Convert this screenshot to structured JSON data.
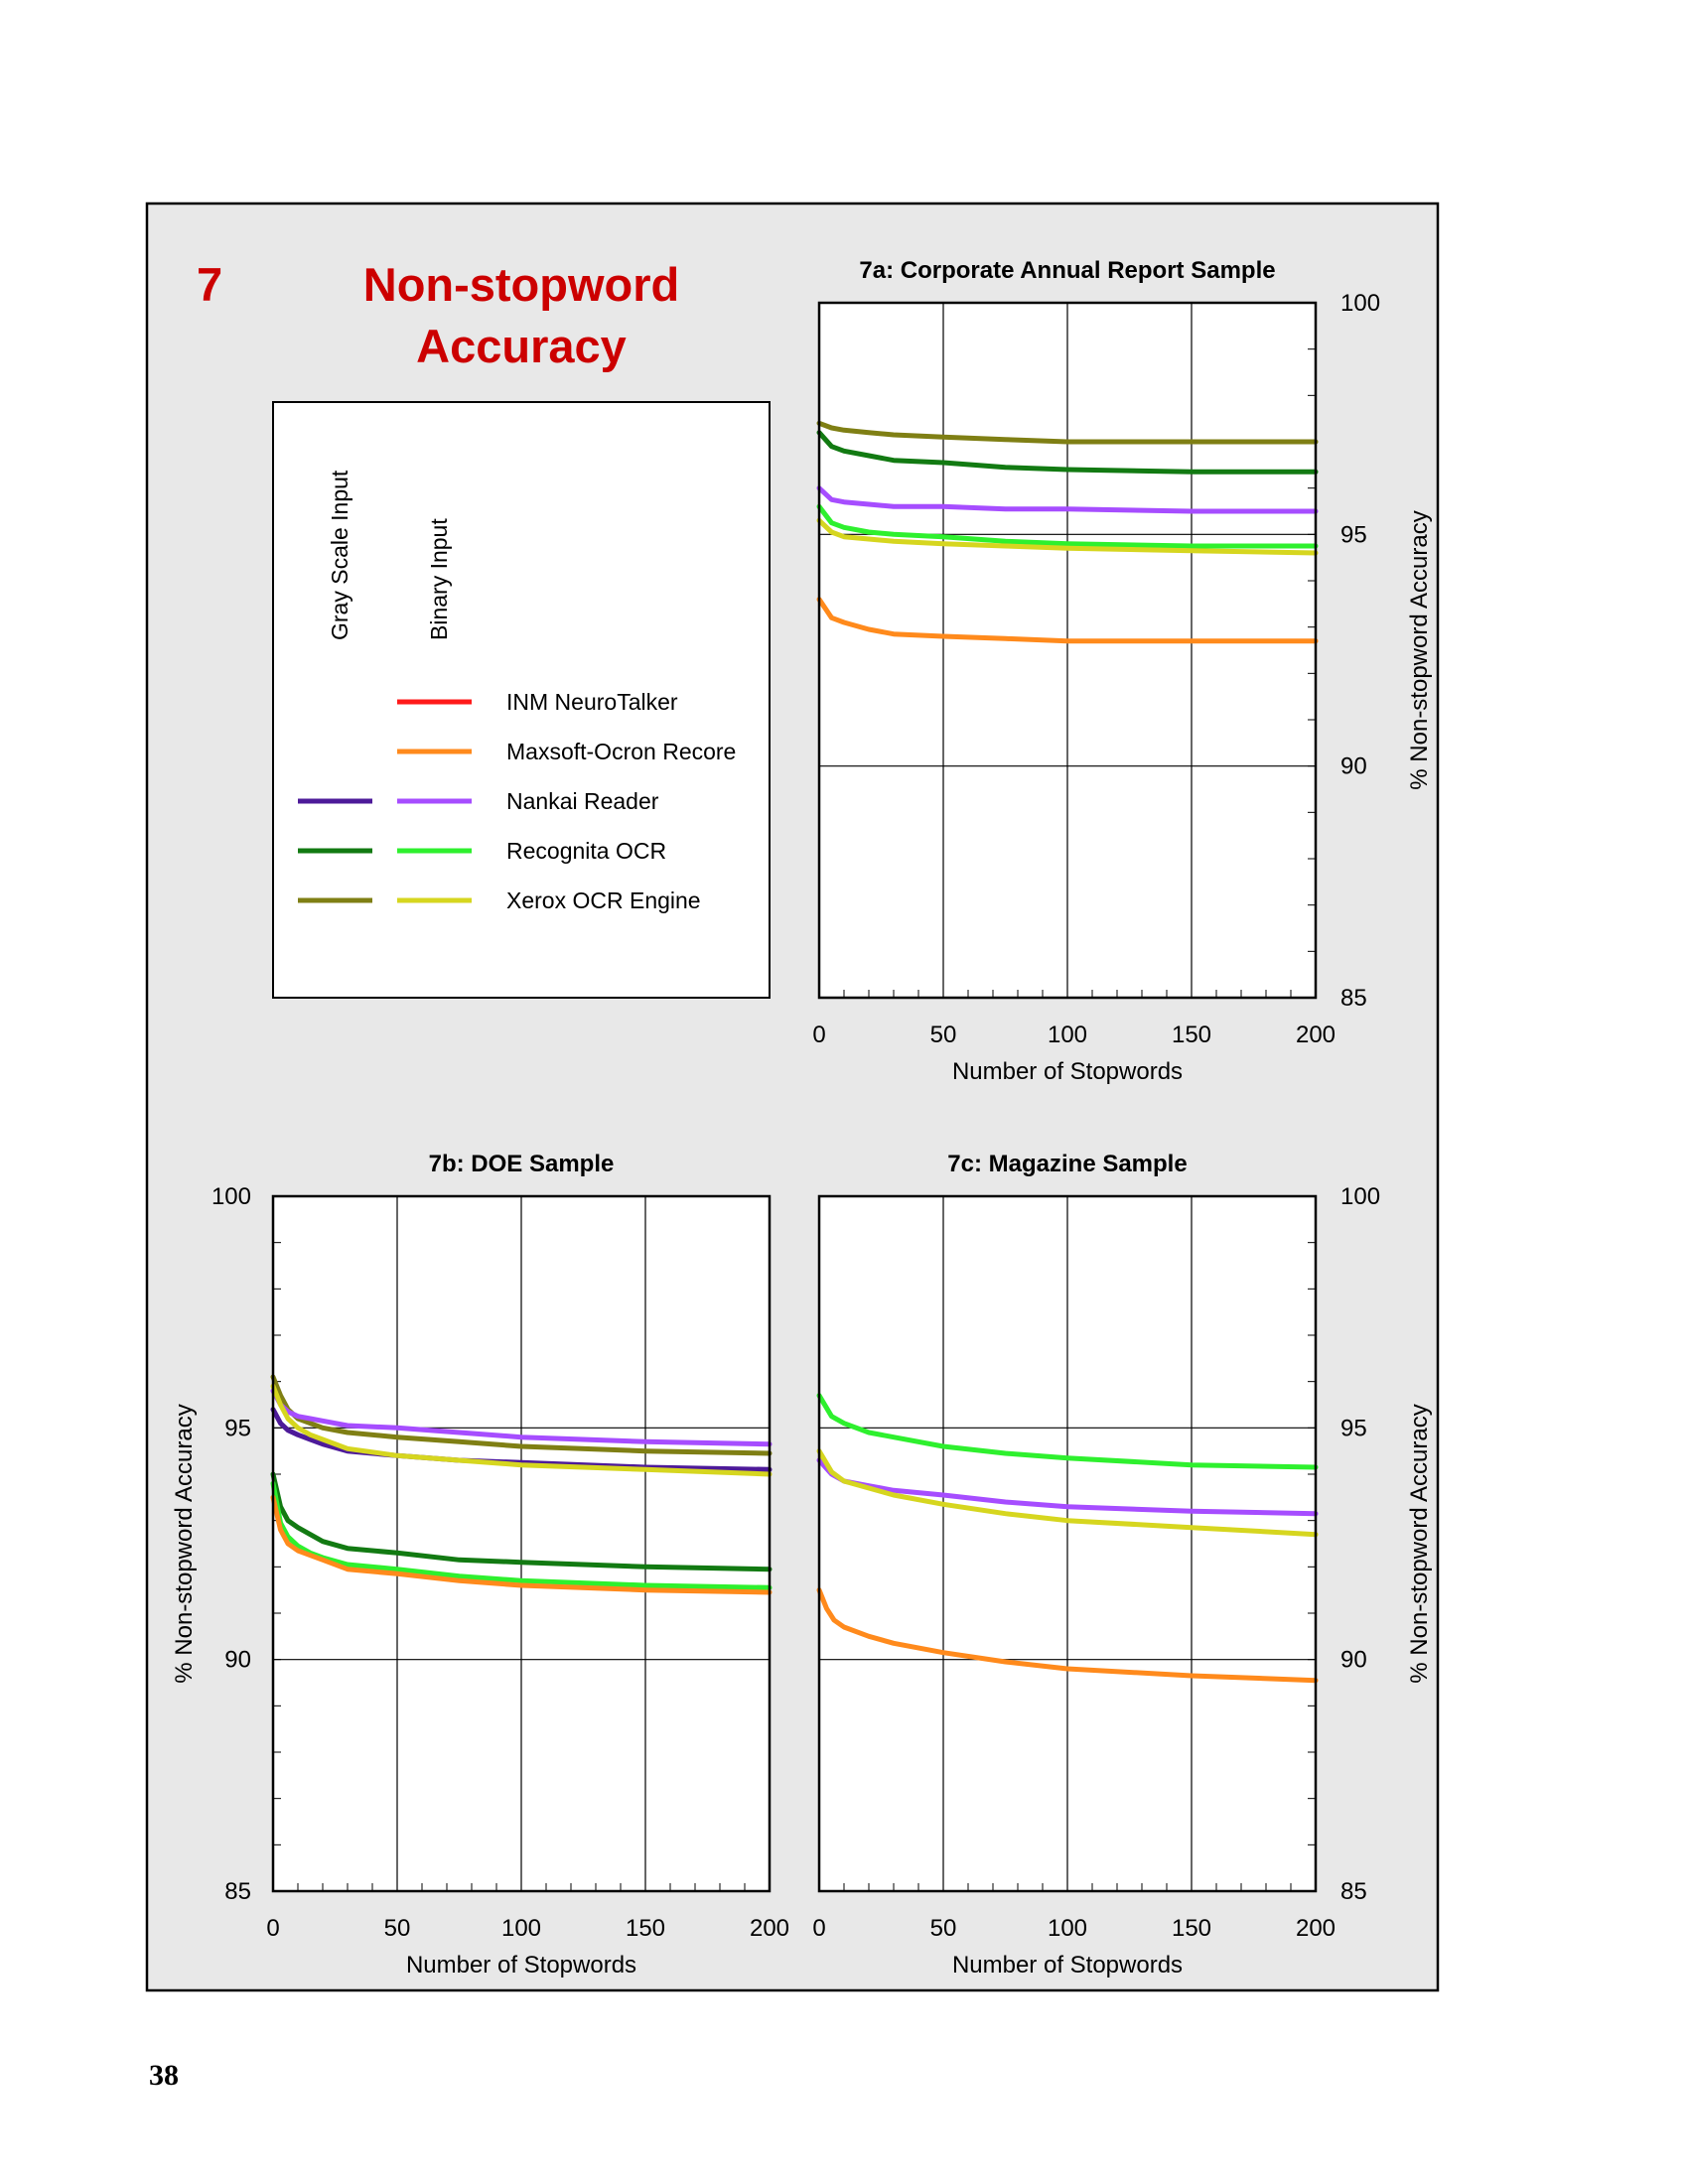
{
  "figure": {
    "number": "7",
    "title_line1": "Non-stopword",
    "title_line2": "Accuracy",
    "page_number": "38"
  },
  "colors": {
    "panel_bg": "#e8e8e8",
    "title_red": "#cc0000",
    "inm_neurotalker_binary": "#ff1a1a",
    "maxsoft_ocron_binary": "#ff8a1c",
    "nankai_gray": "#4d1a99",
    "nankai_binary": "#a64dff",
    "recognita_gray": "#127a12",
    "recognita_binary": "#2ef02e",
    "xerox_gray": "#7f7f14",
    "xerox_binary": "#d6d61f"
  },
  "legend": {
    "column_gray": "Gray Scale Input",
    "column_binary": "Binary Input",
    "entries": [
      {
        "label": "INM NeuroTalker",
        "gray": false,
        "binary": true,
        "gray_color": null,
        "binary_color": "#ff1a1a"
      },
      {
        "label": "Maxsoft-Ocron Recore",
        "gray": false,
        "binary": true,
        "gray_color": null,
        "binary_color": "#ff8a1c"
      },
      {
        "label": "Nankai Reader",
        "gray": true,
        "binary": true,
        "gray_color": "#4d1a99",
        "binary_color": "#a64dff"
      },
      {
        "label": "Recognita OCR",
        "gray": true,
        "binary": true,
        "gray_color": "#127a12",
        "binary_color": "#2ef02e"
      },
      {
        "label": "Xerox OCR Engine",
        "gray": true,
        "binary": true,
        "gray_color": "#7f7f14",
        "binary_color": "#d6d61f"
      }
    ]
  },
  "chart_data": [
    {
      "type": "line",
      "title": "7a:  Corporate Annual Report Sample",
      "xlabel": "Number of Stopwords",
      "ylabel": "% Non-stopword Accuracy",
      "xlim": [
        0,
        200
      ],
      "ylim": [
        85,
        100
      ],
      "xticks": [
        "0",
        "50",
        "100",
        "150",
        "200"
      ],
      "yticks": [
        "85",
        "90",
        "95",
        "100"
      ],
      "y_axis_side": "right",
      "grid": true,
      "series": [
        {
          "name": "Xerox OCR Engine",
          "input": "gray",
          "color": "#7f7f14",
          "x": [
            0,
            5,
            10,
            20,
            30,
            50,
            75,
            100,
            150,
            200
          ],
          "y": [
            97.4,
            97.3,
            97.25,
            97.2,
            97.15,
            97.1,
            97.05,
            97.0,
            97.0,
            97.0
          ]
        },
        {
          "name": "Recognita OCR",
          "input": "gray",
          "color": "#127a12",
          "x": [
            0,
            5,
            10,
            20,
            30,
            50,
            75,
            100,
            150,
            200
          ],
          "y": [
            97.2,
            96.9,
            96.8,
            96.7,
            96.6,
            96.55,
            96.45,
            96.4,
            96.35,
            96.35
          ]
        },
        {
          "name": "Nankai Reader",
          "input": "binary",
          "color": "#a64dff",
          "x": [
            0,
            5,
            10,
            20,
            30,
            50,
            75,
            100,
            150,
            200
          ],
          "y": [
            96.0,
            95.75,
            95.7,
            95.65,
            95.6,
            95.6,
            95.55,
            95.55,
            95.5,
            95.5
          ]
        },
        {
          "name": "Recognita OCR",
          "input": "binary",
          "color": "#2ef02e",
          "x": [
            0,
            5,
            10,
            20,
            30,
            50,
            75,
            100,
            150,
            200
          ],
          "y": [
            95.6,
            95.25,
            95.15,
            95.05,
            95.0,
            94.95,
            94.85,
            94.8,
            94.75,
            94.75
          ]
        },
        {
          "name": "Xerox OCR Engine",
          "input": "binary",
          "color": "#d6d61f",
          "x": [
            0,
            5,
            10,
            20,
            30,
            50,
            75,
            100,
            150,
            200
          ],
          "y": [
            95.3,
            95.05,
            94.95,
            94.9,
            94.85,
            94.8,
            94.75,
            94.7,
            94.65,
            94.6
          ]
        },
        {
          "name": "Maxsoft-Ocron Recore",
          "input": "binary",
          "color": "#ff8a1c",
          "x": [
            0,
            5,
            10,
            20,
            30,
            50,
            75,
            100,
            150,
            200
          ],
          "y": [
            93.6,
            93.2,
            93.1,
            92.95,
            92.85,
            92.8,
            92.75,
            92.7,
            92.7,
            92.7
          ]
        }
      ]
    },
    {
      "type": "line",
      "title": "7b:  DOE Sample",
      "xlabel": "Number of Stopwords",
      "ylabel": "% Non-stopword Accuracy",
      "xlim": [
        0,
        200
      ],
      "ylim": [
        85,
        100
      ],
      "xticks": [
        "0",
        "50",
        "100",
        "150",
        "200"
      ],
      "yticks": [
        "85",
        "90",
        "95",
        "100"
      ],
      "y_axis_side": "left",
      "grid": true,
      "series": [
        {
          "name": "Xerox OCR Engine",
          "input": "gray",
          "color": "#7f7f14",
          "x": [
            0,
            3,
            6,
            10,
            15,
            20,
            30,
            50,
            75,
            100,
            150,
            200
          ],
          "y": [
            96.1,
            95.7,
            95.4,
            95.2,
            95.1,
            95.0,
            94.9,
            94.8,
            94.7,
            94.6,
            94.5,
            94.45
          ]
        },
        {
          "name": "Nankai Reader",
          "input": "binary",
          "color": "#a64dff",
          "x": [
            0,
            3,
            6,
            10,
            15,
            20,
            30,
            50,
            75,
            100,
            150,
            200
          ],
          "y": [
            95.8,
            95.5,
            95.35,
            95.25,
            95.2,
            95.15,
            95.05,
            95.0,
            94.9,
            94.8,
            94.7,
            94.65
          ]
        },
        {
          "name": "Nankai Reader",
          "input": "gray",
          "color": "#4d1a99",
          "x": [
            0,
            3,
            6,
            10,
            15,
            20,
            30,
            50,
            75,
            100,
            150,
            200
          ],
          "y": [
            95.4,
            95.1,
            94.95,
            94.85,
            94.75,
            94.65,
            94.5,
            94.4,
            94.3,
            94.25,
            94.15,
            94.1
          ]
        },
        {
          "name": "Xerox OCR Engine",
          "input": "binary",
          "color": "#d6d61f",
          "x": [
            0,
            3,
            6,
            10,
            15,
            20,
            30,
            50,
            75,
            100,
            150,
            200
          ],
          "y": [
            95.9,
            95.5,
            95.2,
            95.0,
            94.85,
            94.75,
            94.55,
            94.4,
            94.3,
            94.2,
            94.1,
            94.0
          ]
        },
        {
          "name": "Recognita OCR",
          "input": "gray",
          "color": "#127a12",
          "x": [
            0,
            3,
            6,
            10,
            15,
            20,
            30,
            50,
            75,
            100,
            150,
            200
          ],
          "y": [
            94.0,
            93.3,
            93.0,
            92.85,
            92.7,
            92.55,
            92.4,
            92.3,
            92.15,
            92.1,
            92.0,
            91.95
          ]
        },
        {
          "name": "Recognita OCR",
          "input": "binary",
          "color": "#2ef02e",
          "x": [
            0,
            3,
            6,
            10,
            15,
            20,
            30,
            50,
            75,
            100,
            150,
            200
          ],
          "y": [
            93.8,
            92.95,
            92.65,
            92.45,
            92.3,
            92.2,
            92.05,
            91.95,
            91.8,
            91.7,
            91.6,
            91.55
          ]
        },
        {
          "name": "Maxsoft-Ocron Recore",
          "input": "binary",
          "color": "#ff8a1c",
          "x": [
            0,
            3,
            6,
            10,
            15,
            20,
            30,
            50,
            75,
            100,
            150,
            200
          ],
          "y": [
            93.5,
            92.8,
            92.5,
            92.35,
            92.25,
            92.15,
            91.95,
            91.85,
            91.7,
            91.6,
            91.5,
            91.45
          ]
        }
      ]
    },
    {
      "type": "line",
      "title": "7c:  Magazine Sample",
      "xlabel": "Number of Stopwords",
      "ylabel": "% Non-stopword Accuracy",
      "xlim": [
        0,
        200
      ],
      "ylim": [
        85,
        100
      ],
      "xticks": [
        "0",
        "50",
        "100",
        "150",
        "200"
      ],
      "yticks": [
        "85",
        "90",
        "95",
        "100"
      ],
      "y_axis_side": "right",
      "grid": true,
      "series": [
        {
          "name": "Recognita OCR",
          "input": "binary",
          "color": "#2ef02e",
          "x": [
            0,
            5,
            10,
            20,
            30,
            50,
            75,
            100,
            150,
            200
          ],
          "y": [
            95.7,
            95.25,
            95.1,
            94.9,
            94.8,
            94.6,
            94.45,
            94.35,
            94.2,
            94.15
          ]
        },
        {
          "name": "Nankai Reader",
          "input": "binary",
          "color": "#a64dff",
          "x": [
            0,
            5,
            10,
            20,
            30,
            50,
            75,
            100,
            150,
            200
          ],
          "y": [
            94.3,
            94.0,
            93.85,
            93.75,
            93.65,
            93.55,
            93.4,
            93.3,
            93.2,
            93.15
          ]
        },
        {
          "name": "Xerox OCR Engine",
          "input": "binary",
          "color": "#d6d61f",
          "x": [
            0,
            5,
            10,
            20,
            30,
            50,
            75,
            100,
            150,
            200
          ],
          "y": [
            94.5,
            94.05,
            93.85,
            93.7,
            93.55,
            93.35,
            93.15,
            93.0,
            92.85,
            92.7
          ]
        },
        {
          "name": "Maxsoft-Ocron Recore",
          "input": "binary",
          "color": "#ff8a1c",
          "x": [
            0,
            3,
            6,
            10,
            20,
            30,
            50,
            75,
            100,
            150,
            200
          ],
          "y": [
            91.5,
            91.1,
            90.85,
            90.7,
            90.5,
            90.35,
            90.15,
            89.95,
            89.8,
            89.65,
            89.55
          ]
        }
      ]
    }
  ]
}
